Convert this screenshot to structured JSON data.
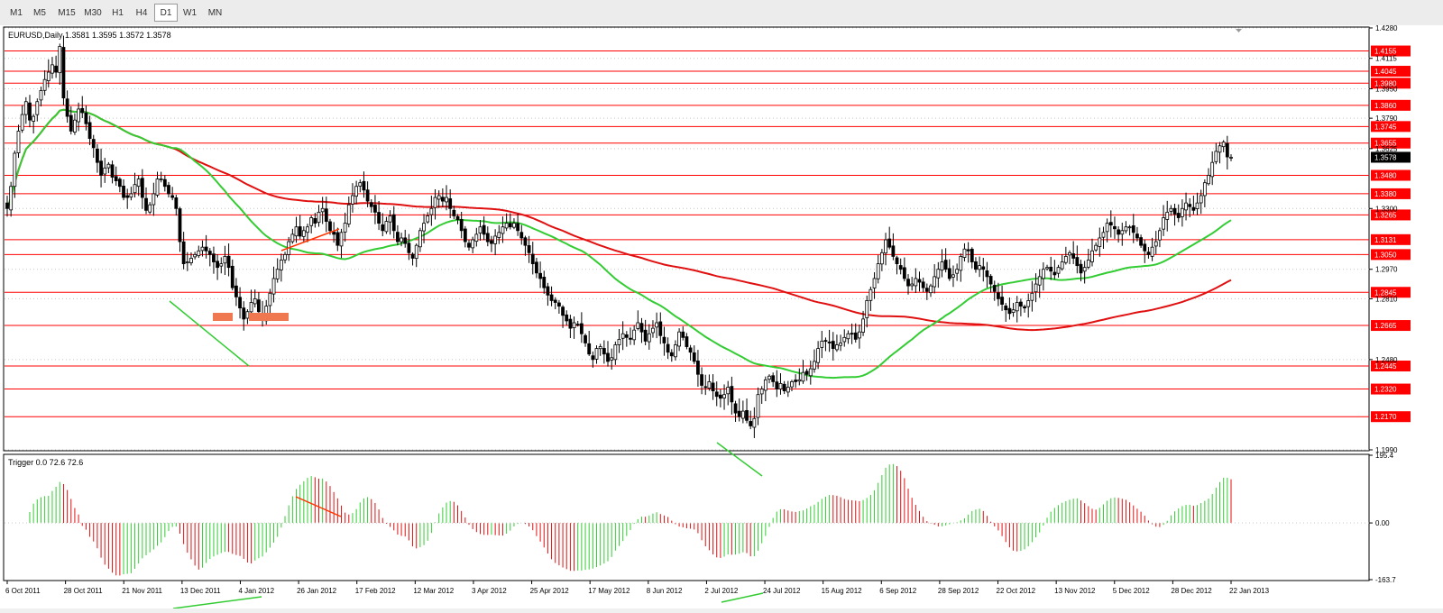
{
  "timeframes": {
    "items": [
      "M1",
      "M5",
      "M15",
      "M30",
      "H1",
      "H4",
      "D1",
      "W1",
      "MN"
    ],
    "active": "D1"
  },
  "main_info": "EURUSD,Daily  1.3581 1.3595 1.3572 1.3578",
  "trigger_info": "Trigger 0.0 72.6 72.6",
  "colors": {
    "bull_candle": "#000000",
    "bear_candle": "#000000",
    "ma_fast": "#33cc33",
    "ma_slow": "#e01010",
    "sr_line": "#ff0000",
    "hist_up": "#33cc33",
    "hist_down": "#e01010",
    "trendline_green": "#33cc33",
    "trendline_red": "#ff3300",
    "zone_box": "#f07850",
    "current_price_bg": "#000000"
  },
  "chart_data": [
    {
      "type": "candlestick",
      "symbol": "EURUSD",
      "timeframe": "Daily",
      "ohlc_last": {
        "open": 1.3581,
        "high": 1.3595,
        "low": 1.3572,
        "close": 1.3578
      },
      "y_ticks": [
        "1.4280",
        "1.4115",
        "1.3950",
        "1.3790",
        "1.3625",
        "1.3300",
        "1.2970",
        "1.2810",
        "1.2480",
        "1.1990"
      ],
      "ylim": [
        1.199,
        1.428
      ],
      "sr_levels": [
        "1.4155",
        "1.4045",
        "1.3980",
        "1.3860",
        "1.3745",
        "1.3655",
        "1.3480",
        "1.3380",
        "1.3265",
        "1.3131",
        "1.3050",
        "1.2845",
        "1.2665",
        "1.2445",
        "1.2320",
        "1.2170"
      ],
      "current_price": "1.3578",
      "x_tick_labels": [
        "6 Oct 2011",
        "28 Oct 2011",
        "21 Nov 2011",
        "13 Dec 2011",
        "4 Jan 2012",
        "26 Jan 2012",
        "17 Feb 2012",
        "12 Mar 2012",
        "3 Apr 2012",
        "25 Apr 2012",
        "17 May 2012",
        "8 Jun 2012",
        "2 Jul 2012",
        "24 Jul 2012",
        "15 Aug 2012",
        "6 Sep 2012",
        "28 Sep 2012",
        "22 Oct 2012",
        "13 Nov 2012",
        "5 Dec 2012",
        "28 Dec 2012",
        "22 Jan 2013"
      ],
      "closes": [
        1.33,
        1.342,
        1.36,
        1.372,
        1.381,
        1.388,
        1.378,
        1.38,
        1.388,
        1.394,
        1.4,
        1.404,
        1.408,
        1.404,
        1.418,
        1.39,
        1.38,
        1.372,
        1.378,
        1.384,
        1.382,
        1.376,
        1.368,
        1.363,
        1.355,
        1.348,
        1.352,
        1.354,
        1.347,
        1.345,
        1.342,
        1.336,
        1.336,
        1.338,
        1.343,
        1.346,
        1.336,
        1.329,
        1.332,
        1.338,
        1.346,
        1.346,
        1.342,
        1.338,
        1.336,
        1.33,
        1.312,
        1.3,
        1.301,
        1.303,
        1.305,
        1.307,
        1.309,
        1.307,
        1.305,
        1.301,
        1.298,
        1.3,
        1.304,
        1.298,
        1.287,
        1.282,
        1.276,
        1.27,
        1.274,
        1.279,
        1.281,
        1.274,
        1.27,
        1.277,
        1.284,
        1.292,
        1.297,
        1.302,
        1.305,
        1.312,
        1.316,
        1.32,
        1.315,
        1.318,
        1.32,
        1.325,
        1.322,
        1.328,
        1.33,
        1.323,
        1.318,
        1.316,
        1.31,
        1.317,
        1.322,
        1.332,
        1.337,
        1.342,
        1.344,
        1.34,
        1.334,
        1.331,
        1.328,
        1.322,
        1.318,
        1.323,
        1.326,
        1.318,
        1.312,
        1.314,
        1.311,
        1.306,
        1.303,
        1.31,
        1.318,
        1.322,
        1.326,
        1.33,
        1.336,
        1.337,
        1.334,
        1.336,
        1.33,
        1.326,
        1.324,
        1.318,
        1.312,
        1.309,
        1.313,
        1.316,
        1.32,
        1.316,
        1.312,
        1.311,
        1.315,
        1.317,
        1.32,
        1.322,
        1.32,
        1.322,
        1.318,
        1.314,
        1.31,
        1.306,
        1.3,
        1.295,
        1.292,
        1.287,
        1.283,
        1.28,
        1.279,
        1.277,
        1.272,
        1.269,
        1.265,
        1.268,
        1.267,
        1.262,
        1.257,
        1.251,
        1.248,
        1.254,
        1.255,
        1.251,
        1.247,
        1.249,
        1.256,
        1.259,
        1.262,
        1.26,
        1.259,
        1.264,
        1.268,
        1.263,
        1.258,
        1.262,
        1.265,
        1.268,
        1.261,
        1.257,
        1.252,
        1.25,
        1.256,
        1.263,
        1.26,
        1.255,
        1.252,
        1.247,
        1.24,
        1.234,
        1.233,
        1.236,
        1.231,
        1.228,
        1.227,
        1.229,
        1.233,
        1.225,
        1.219,
        1.217,
        1.22,
        1.215,
        1.212,
        1.216,
        1.229,
        1.232,
        1.237,
        1.239,
        1.236,
        1.232,
        1.235,
        1.231,
        1.233,
        1.236,
        1.236,
        1.237,
        1.241,
        1.24,
        1.243,
        1.247,
        1.254,
        1.258,
        1.258,
        1.257,
        1.254,
        1.256,
        1.257,
        1.26,
        1.262,
        1.262,
        1.259,
        1.263,
        1.27,
        1.28,
        1.286,
        1.292,
        1.3,
        1.306,
        1.313,
        1.309,
        1.304,
        1.3,
        1.297,
        1.292,
        1.288,
        1.289,
        1.292,
        1.29,
        1.287,
        1.285,
        1.288,
        1.293,
        1.297,
        1.301,
        1.297,
        1.292,
        1.294,
        1.297,
        1.304,
        1.308,
        1.307,
        1.301,
        1.297,
        1.299,
        1.297,
        1.293,
        1.289,
        1.285,
        1.281,
        1.278,
        1.275,
        1.273,
        1.275,
        1.279,
        1.277,
        1.276,
        1.28,
        1.284,
        1.289,
        1.293,
        1.297,
        1.298,
        1.296,
        1.294,
        1.298,
        1.301,
        1.304,
        1.306,
        1.303,
        1.299,
        1.295,
        1.298,
        1.302,
        1.307,
        1.31,
        1.314,
        1.317,
        1.322,
        1.321,
        1.319,
        1.316,
        1.318,
        1.32,
        1.32,
        1.317,
        1.314,
        1.31,
        1.307,
        1.305,
        1.309,
        1.312,
        1.318,
        1.325,
        1.328,
        1.33,
        1.327,
        1.325,
        1.33,
        1.333,
        1.331,
        1.329,
        1.333,
        1.337,
        1.344,
        1.348,
        1.355,
        1.361,
        1.364,
        1.366,
        1.358,
        1.3578
      ],
      "ma_fast": {
        "name": "",
        "description": "green moving average"
      },
      "ma_slow": {
        "name": "",
        "description": "red moving average"
      }
    },
    {
      "type": "histogram",
      "indicator": "Trigger",
      "values_shown": [
        0.0,
        72.6,
        72.6
      ],
      "y_ticks": [
        "195.4",
        "0.00",
        "-163.7"
      ],
      "ylim": [
        -163.7,
        195.4
      ],
      "note": "oscillator histogram mirroring the price momentum"
    }
  ]
}
